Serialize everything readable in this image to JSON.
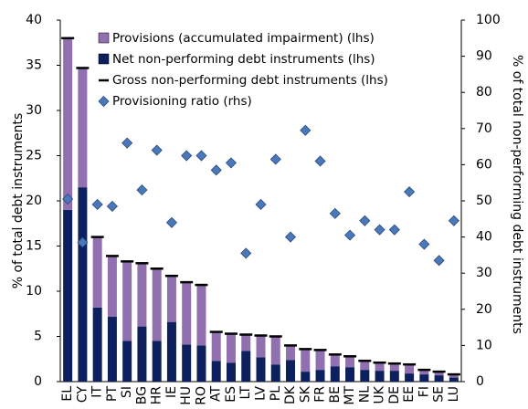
{
  "chart_data": {
    "type": "bar",
    "stacked": true,
    "ylabel": "% of total debt instruments",
    "y2label": "% of total non-performing debt instruments",
    "categories": [
      "EL",
      "CY",
      "IT",
      "PT",
      "SI",
      "BG",
      "HR",
      "IE",
      "HU",
      "RO",
      "AT",
      "ES",
      "LT",
      "LV",
      "PL",
      "DK",
      "SK",
      "FR",
      "BE",
      "MT",
      "NL",
      "UK",
      "DE",
      "EE",
      "FI",
      "SE",
      "LU"
    ],
    "series": [
      {
        "name": "Provisions (accumulated impairment) (lhs)",
        "color": "#9070ae",
        "marker": "bar",
        "values": [
          19,
          13.2,
          7.8,
          6.7,
          8.8,
          7,
          8,
          5.1,
          6.9,
          6.7,
          3.2,
          3.2,
          1.8,
          2.4,
          3.1,
          1.6,
          2.5,
          2.2,
          1.3,
          1.2,
          1.0,
          0.9,
          0.8,
          1.0,
          0.5,
          0.4,
          0.35
        ]
      },
      {
        "name": "Net non-performing debt instruments (lhs)",
        "color": "#0d1f5c",
        "marker": "bar",
        "values": [
          19,
          21.5,
          8.2,
          7.2,
          4.5,
          6.1,
          4.5,
          6.6,
          4.1,
          4,
          2.3,
          2.1,
          3.4,
          2.7,
          1.9,
          2.4,
          1.1,
          1.3,
          1.7,
          1.6,
          1.3,
          1.2,
          1.2,
          0.9,
          0.8,
          0.7,
          0.45
        ]
      },
      {
        "name": "Gross non-performing debt instruments (lhs)",
        "color": "#000000",
        "marker": "dash",
        "values": [
          38,
          34.7,
          16,
          13.9,
          13.3,
          13.1,
          12.5,
          11.7,
          11,
          10.7,
          5.5,
          5.3,
          5.2,
          5.1,
          5,
          4,
          3.6,
          3.5,
          3,
          2.8,
          2.3,
          2.1,
          2,
          1.9,
          1.3,
          1.1,
          0.8
        ]
      },
      {
        "name": "Provisioning ratio (rhs)",
        "color": "#4a78b8",
        "marker": "diamond",
        "axis": "y2",
        "values": [
          50.5,
          38.5,
          49,
          48.5,
          66,
          53,
          64,
          44,
          62.5,
          62.5,
          58.5,
          60.5,
          35.5,
          49,
          61.5,
          40,
          69.5,
          61,
          46.5,
          40.5,
          44.5,
          42,
          42,
          52.5,
          38,
          33.5,
          44.5
        ]
      }
    ],
    "ylim": [
      0,
      40
    ],
    "yticks": [
      0,
      5,
      10,
      15,
      20,
      25,
      30,
      35,
      40
    ],
    "y2lim": [
      0,
      100
    ],
    "y2ticks": [
      0,
      10,
      20,
      30,
      40,
      50,
      60,
      70,
      80,
      90,
      100
    ]
  }
}
